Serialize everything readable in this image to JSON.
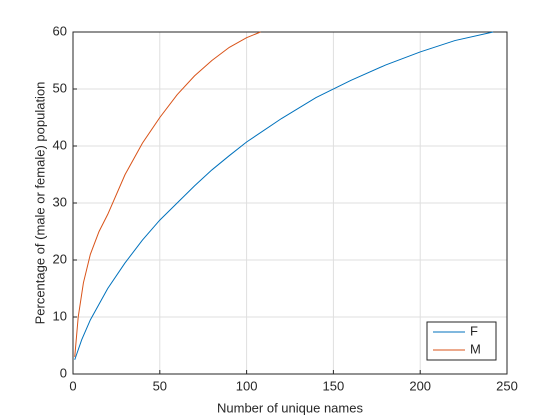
{
  "chart_data": {
    "type": "line",
    "xlabel": "Number of unique names",
    "ylabel": "Percentage of (male or female) population",
    "series": [
      {
        "name": "F",
        "color": "#0072bd",
        "x": [
          1,
          5,
          10,
          20,
          30,
          40,
          50,
          60,
          70,
          80,
          90,
          100,
          120,
          140,
          160,
          180,
          200,
          220,
          242
        ],
        "values": [
          2.5,
          6,
          9.5,
          15,
          19.5,
          23.5,
          27,
          30,
          33,
          35.8,
          38.3,
          40.7,
          44.8,
          48.5,
          51.5,
          54.2,
          56.5,
          58.5,
          60
        ]
      },
      {
        "name": "M",
        "color": "#d95319",
        "x": [
          1,
          3,
          6,
          10,
          15,
          20,
          30,
          40,
          50,
          60,
          70,
          80,
          90,
          100,
          108
        ],
        "values": [
          3,
          10,
          16,
          21,
          25,
          28,
          35,
          40.5,
          45,
          49,
          52.3,
          55,
          57.3,
          59,
          60
        ]
      }
    ],
    "xlim": [
      0,
      250
    ],
    "xticks": [
      0,
      50,
      100,
      150,
      200,
      250
    ],
    "ylim": [
      0,
      60
    ],
    "yticks": [
      0,
      10,
      20,
      30,
      40,
      50,
      60
    ],
    "grid": true,
    "legend": "lower-right"
  }
}
